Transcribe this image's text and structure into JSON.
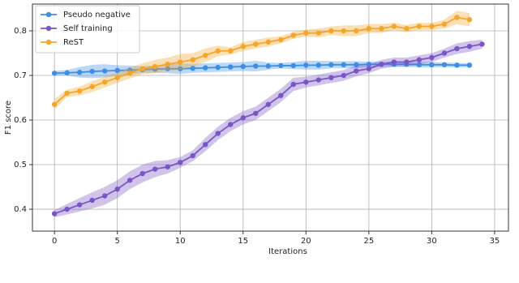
{
  "chart_data": {
    "type": "line",
    "x_label": "Iterations",
    "y_label": "F1 score",
    "xlim": [
      -1.75,
      36.1
    ],
    "ylim": [
      0.351,
      0.86
    ],
    "xticks": [
      0,
      5,
      10,
      15,
      20,
      25,
      30,
      35
    ],
    "yticks": [
      0.4,
      0.5,
      0.6,
      0.7,
      0.8
    ],
    "grid": true,
    "legend": "upper-left",
    "series": [
      {
        "name": "Pseudo negative",
        "color": "#3d8ee6",
        "x": [
          0,
          1,
          2,
          3,
          4,
          5,
          6,
          7,
          8,
          9,
          10,
          11,
          12,
          13,
          14,
          15,
          16,
          17,
          18,
          19,
          20,
          21,
          22,
          23,
          24,
          25,
          26,
          27,
          28,
          29,
          30,
          31,
          32,
          33
        ],
        "values": [
          0.705,
          0.706,
          0.707,
          0.709,
          0.71,
          0.711,
          0.712,
          0.713,
          0.714,
          0.715,
          0.715,
          0.716,
          0.717,
          0.718,
          0.719,
          0.72,
          0.721,
          0.721,
          0.722,
          0.722,
          0.723,
          0.723,
          0.724,
          0.724,
          0.724,
          0.725,
          0.725,
          0.725,
          0.725,
          0.724,
          0.724,
          0.724,
          0.723,
          0.723
        ],
        "error": [
          0.005,
          0.006,
          0.012,
          0.015,
          0.015,
          0.012,
          0.01,
          0.008,
          0.008,
          0.01,
          0.012,
          0.01,
          0.01,
          0.01,
          0.01,
          0.01,
          0.012,
          0.008,
          0.006,
          0.008,
          0.01,
          0.01,
          0.008,
          0.008,
          0.008,
          0.006,
          0.006,
          0.006,
          0.006,
          0.006,
          0.006,
          0.005,
          0.005,
          0.004
        ]
      },
      {
        "name": "Self training",
        "color": "#7a55c5",
        "x": [
          0,
          1,
          2,
          3,
          4,
          5,
          6,
          7,
          8,
          9,
          10,
          11,
          12,
          13,
          14,
          15,
          16,
          17,
          18,
          19,
          20,
          21,
          22,
          23,
          24,
          25,
          26,
          27,
          28,
          29,
          30,
          31,
          32,
          33,
          34
        ],
        "values": [
          0.39,
          0.4,
          0.41,
          0.42,
          0.43,
          0.445,
          0.465,
          0.48,
          0.49,
          0.495,
          0.505,
          0.52,
          0.545,
          0.57,
          0.59,
          0.605,
          0.615,
          0.635,
          0.655,
          0.68,
          0.685,
          0.69,
          0.695,
          0.7,
          0.71,
          0.715,
          0.725,
          0.73,
          0.73,
          0.735,
          0.74,
          0.75,
          0.76,
          0.765,
          0.77
        ],
        "error": [
          0.008,
          0.012,
          0.015,
          0.018,
          0.02,
          0.02,
          0.02,
          0.02,
          0.018,
          0.015,
          0.012,
          0.012,
          0.015,
          0.015,
          0.015,
          0.015,
          0.015,
          0.015,
          0.015,
          0.015,
          0.012,
          0.012,
          0.012,
          0.012,
          0.012,
          0.01,
          0.01,
          0.01,
          0.01,
          0.01,
          0.01,
          0.01,
          0.012,
          0.012,
          0.01
        ]
      },
      {
        "name": "ReST",
        "color": "#f5a52a",
        "x": [
          0,
          1,
          2,
          3,
          4,
          5,
          6,
          7,
          8,
          9,
          10,
          11,
          12,
          13,
          14,
          15,
          16,
          17,
          18,
          19,
          20,
          21,
          22,
          23,
          24,
          25,
          26,
          27,
          28,
          29,
          30,
          31,
          32,
          33
        ],
        "values": [
          0.635,
          0.66,
          0.665,
          0.675,
          0.685,
          0.695,
          0.705,
          0.715,
          0.72,
          0.725,
          0.73,
          0.735,
          0.745,
          0.755,
          0.755,
          0.765,
          0.77,
          0.775,
          0.78,
          0.79,
          0.795,
          0.795,
          0.8,
          0.8,
          0.8,
          0.805,
          0.805,
          0.81,
          0.805,
          0.81,
          0.81,
          0.815,
          0.83,
          0.825
        ],
        "error": [
          0.012,
          0.008,
          0.01,
          0.012,
          0.012,
          0.012,
          0.012,
          0.012,
          0.015,
          0.015,
          0.018,
          0.015,
          0.015,
          0.012,
          0.008,
          0.01,
          0.01,
          0.01,
          0.008,
          0.008,
          0.008,
          0.01,
          0.01,
          0.012,
          0.012,
          0.01,
          0.01,
          0.008,
          0.008,
          0.008,
          0.008,
          0.01,
          0.015,
          0.015
        ]
      }
    ]
  }
}
